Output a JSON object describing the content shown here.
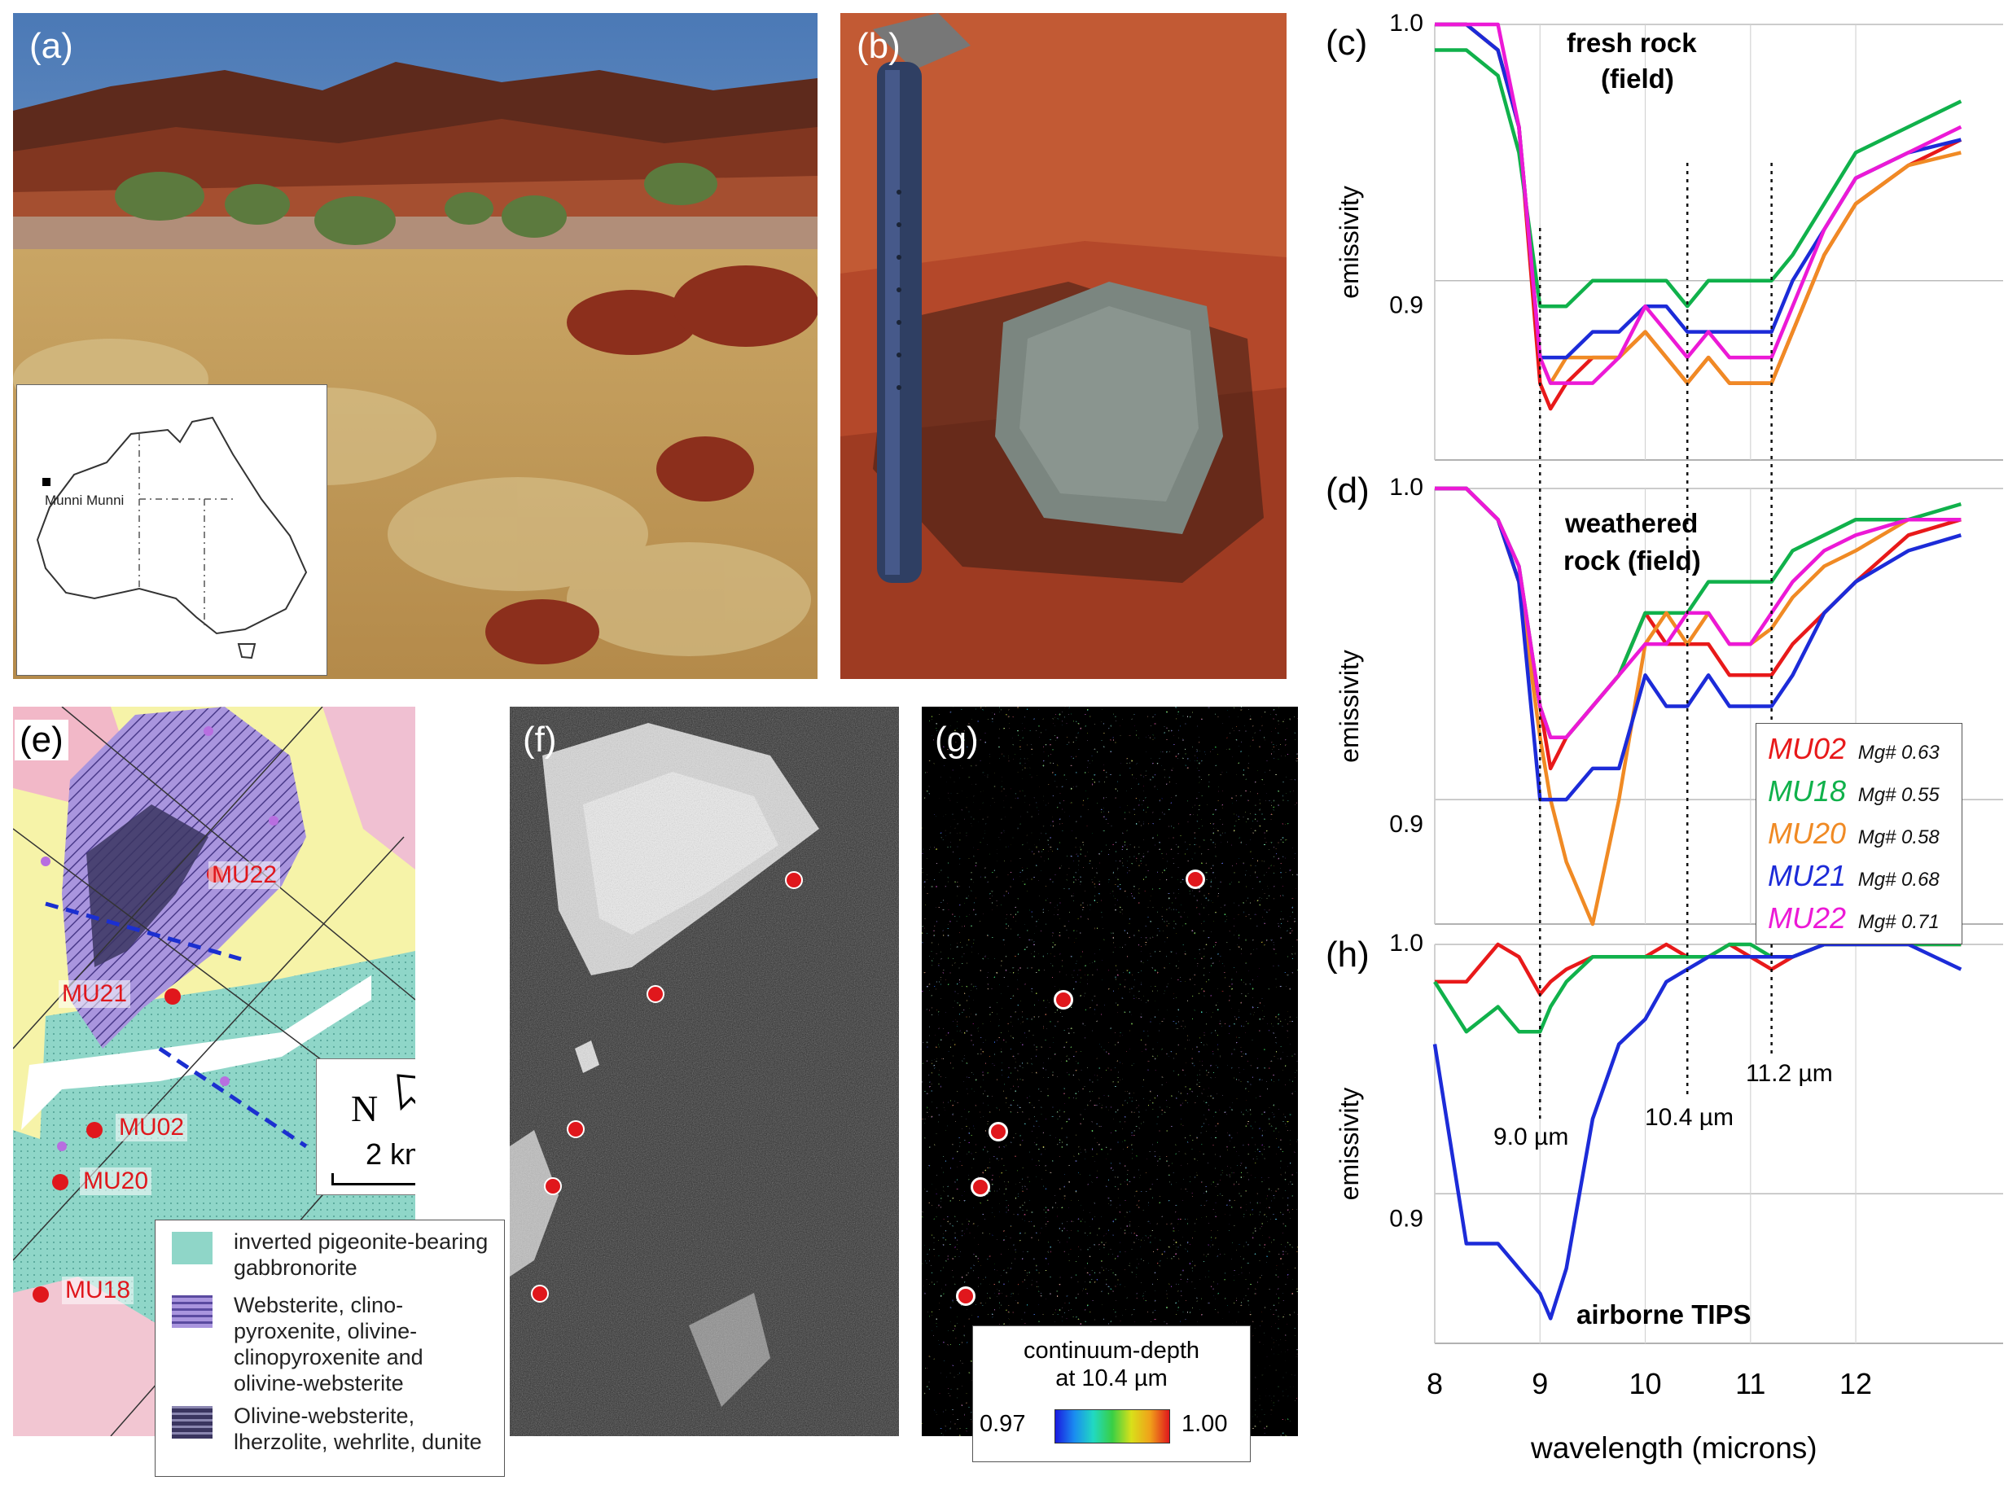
{
  "panels": {
    "a": {
      "label": "(a)",
      "inset_place": "Munni Munni"
    },
    "b": {
      "label": "(b)"
    },
    "c": {
      "label": "(c)",
      "title_line1": "fresh rock",
      "title_line2": "(field)"
    },
    "d": {
      "label": "(d)",
      "title_line1": "weathered",
      "title_line2": "rock (field)"
    },
    "e": {
      "label": "(e)",
      "north": "N",
      "scale": "2 km",
      "sites": [
        "MU22",
        "MU21",
        "MU02",
        "MU20",
        "MU18"
      ],
      "legend": [
        {
          "text": "inverted pigeonite-bearing gabbronorite"
        },
        {
          "text": "Websterite, clino-pyroxenite, olivine-clinopyroxenite and olivine-websterite"
        },
        {
          "text": "Olivine-websterite, lherzolite, wehrlite, dunite"
        }
      ]
    },
    "f": {
      "label": "(f)"
    },
    "g": {
      "label": "(g)",
      "cbar_title1": "continuum-depth",
      "cbar_title2": "at 10.4 µm",
      "cbar_min": "0.97",
      "cbar_max": "1.00"
    },
    "h": {
      "label": "(h)",
      "annotation": "airborne TIPS"
    }
  },
  "axes": {
    "ylabel": "emissivity",
    "xlabel": "wavelength (microns)",
    "y_tick_hi": "1.0",
    "y_tick_lo": "0.9",
    "x_ticks": [
      "8",
      "9",
      "10",
      "11",
      "12"
    ],
    "markers": [
      "9.0 µm",
      "10.4 µm",
      "11.2 µm"
    ]
  },
  "samples": [
    {
      "name": "MU02",
      "mg": "Mg# 0.63",
      "color": "#e8191a"
    },
    {
      "name": "MU18",
      "mg": "Mg# 0.55",
      "color": "#10b14b"
    },
    {
      "name": "MU20",
      "mg": "Mg# 0.58",
      "color": "#f08a24"
    },
    {
      "name": "MU21",
      "mg": "Mg# 0.68",
      "color": "#1c2bd8"
    },
    {
      "name": "MU22",
      "mg": "Mg# 0.71",
      "color": "#ec19d6"
    }
  ],
  "chart_data": [
    {
      "type": "line",
      "panel": "c",
      "ylabel": "emissivity",
      "y_ticks": [
        1.0,
        0.9
      ],
      "x": [
        8.0,
        8.3,
        8.6,
        8.8,
        9.0,
        9.1,
        9.25,
        9.5,
        9.75,
        10.0,
        10.2,
        10.4,
        10.6,
        10.8,
        11.0,
        11.2,
        11.4,
        11.7,
        12.0,
        12.5,
        13.0
      ],
      "series": [
        {
          "name": "MU02",
          "values": [
            1.0,
            1.0,
            0.99,
            0.96,
            0.86,
            0.85,
            0.86,
            0.87,
            0.87,
            0.88,
            0.87,
            0.86,
            0.87,
            0.86,
            0.86,
            0.86,
            0.88,
            0.91,
            0.93,
            0.945,
            0.955
          ]
        },
        {
          "name": "MU18",
          "values": [
            0.99,
            0.99,
            0.98,
            0.95,
            0.89,
            0.89,
            0.89,
            0.9,
            0.9,
            0.9,
            0.9,
            0.89,
            0.9,
            0.9,
            0.9,
            0.9,
            0.91,
            0.93,
            0.95,
            0.96,
            0.97
          ]
        },
        {
          "name": "MU20",
          "values": [
            1.0,
            1.0,
            0.99,
            0.96,
            0.87,
            0.86,
            0.87,
            0.87,
            0.87,
            0.88,
            0.87,
            0.86,
            0.87,
            0.86,
            0.86,
            0.86,
            0.88,
            0.91,
            0.93,
            0.945,
            0.95
          ]
        },
        {
          "name": "MU21",
          "values": [
            1.0,
            1.0,
            0.99,
            0.96,
            0.87,
            0.87,
            0.87,
            0.88,
            0.88,
            0.89,
            0.89,
            0.88,
            0.88,
            0.88,
            0.88,
            0.88,
            0.9,
            0.92,
            0.94,
            0.95,
            0.955
          ]
        },
        {
          "name": "MU22",
          "values": [
            1.0,
            1.0,
            1.0,
            0.96,
            0.87,
            0.86,
            0.86,
            0.86,
            0.87,
            0.89,
            0.88,
            0.87,
            0.88,
            0.87,
            0.87,
            0.87,
            0.89,
            0.92,
            0.94,
            0.95,
            0.96
          ]
        }
      ]
    },
    {
      "type": "line",
      "panel": "d",
      "ylabel": "emissivity",
      "y_ticks": [
        1.0,
        0.9
      ],
      "x": [
        8.0,
        8.3,
        8.6,
        8.8,
        9.0,
        9.1,
        9.25,
        9.5,
        9.75,
        10.0,
        10.2,
        10.4,
        10.6,
        10.8,
        11.0,
        11.2,
        11.4,
        11.7,
        12.0,
        12.5,
        13.0
      ],
      "series": [
        {
          "name": "MU02",
          "values": [
            1.0,
            1.0,
            0.99,
            0.97,
            0.93,
            0.91,
            0.92,
            0.93,
            0.94,
            0.96,
            0.95,
            0.95,
            0.95,
            0.94,
            0.94,
            0.94,
            0.95,
            0.96,
            0.97,
            0.985,
            0.99
          ]
        },
        {
          "name": "MU18",
          "values": [
            1.0,
            1.0,
            0.99,
            0.975,
            0.93,
            0.92,
            0.92,
            0.93,
            0.94,
            0.96,
            0.96,
            0.96,
            0.97,
            0.97,
            0.97,
            0.97,
            0.98,
            0.985,
            0.99,
            0.99,
            0.995
          ]
        },
        {
          "name": "MU20",
          "values": [
            1.0,
            1.0,
            0.99,
            0.97,
            0.92,
            0.9,
            0.88,
            0.86,
            0.9,
            0.95,
            0.96,
            0.95,
            0.96,
            0.95,
            0.95,
            0.955,
            0.965,
            0.975,
            0.98,
            0.99,
            0.99
          ]
        },
        {
          "name": "MU21",
          "values": [
            1.0,
            1.0,
            0.99,
            0.97,
            0.9,
            0.9,
            0.9,
            0.91,
            0.91,
            0.94,
            0.93,
            0.93,
            0.94,
            0.93,
            0.93,
            0.93,
            0.94,
            0.96,
            0.97,
            0.98,
            0.985
          ]
        },
        {
          "name": "MU22",
          "values": [
            1.0,
            1.0,
            0.99,
            0.975,
            0.93,
            0.92,
            0.92,
            0.93,
            0.94,
            0.95,
            0.95,
            0.96,
            0.96,
            0.95,
            0.95,
            0.96,
            0.97,
            0.98,
            0.985,
            0.99,
            0.99
          ]
        }
      ]
    },
    {
      "type": "line",
      "panel": "h",
      "ylabel": "emissivity",
      "y_ticks": [
        1.0,
        0.9
      ],
      "x": [
        8.0,
        8.3,
        8.6,
        8.8,
        9.0,
        9.1,
        9.25,
        9.5,
        9.75,
        10.0,
        10.2,
        10.4,
        10.6,
        10.8,
        11.0,
        11.2,
        11.4,
        11.7,
        12.0,
        12.5,
        13.0
      ],
      "series": [
        {
          "name": "MU02",
          "values": [
            0.985,
            0.985,
            1.0,
            0.995,
            0.98,
            0.985,
            0.99,
            0.995,
            0.995,
            0.995,
            1.0,
            0.995,
            0.995,
            1.0,
            0.995,
            0.99,
            0.995,
            1.0,
            1.0,
            1.0,
            1.0
          ]
        },
        {
          "name": "MU18",
          "values": [
            0.985,
            0.965,
            0.975,
            0.965,
            0.965,
            0.975,
            0.985,
            0.995,
            0.995,
            0.995,
            0.995,
            0.995,
            0.995,
            1.0,
            1.0,
            0.995,
            0.995,
            1.0,
            1.0,
            1.0,
            1.0
          ]
        },
        {
          "name": "MU21",
          "values": [
            0.96,
            0.88,
            0.88,
            0.87,
            0.86,
            0.85,
            0.87,
            0.93,
            0.96,
            0.97,
            0.985,
            0.99,
            0.995,
            0.995,
            0.995,
            0.995,
            0.995,
            1.0,
            1.0,
            1.0,
            0.99
          ]
        }
      ]
    }
  ]
}
